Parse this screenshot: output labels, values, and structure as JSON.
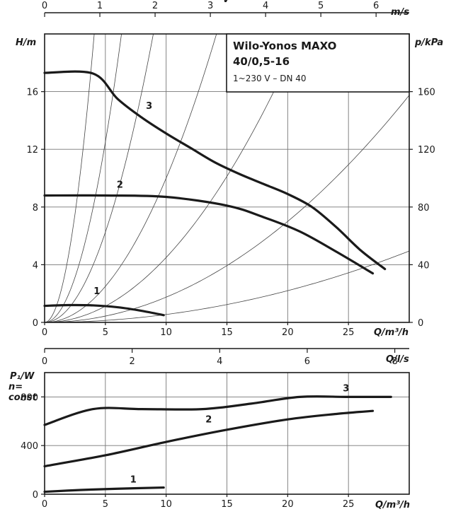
{
  "chart_data": [
    {
      "type": "line",
      "title": "Wilo-Yonos MAXO",
      "title_line2": "40/0,5-16",
      "subtitle": "1~230 V – DN 40",
      "xlabel": "Q/m³/h",
      "ylabel": "H/m",
      "y2label": "p/kPa",
      "top_axis_label": "v",
      "top_axis_unit": "m/s",
      "xlim": [
        0,
        30
      ],
      "ylim": [
        0,
        20
      ],
      "y2lim": [
        0,
        200
      ],
      "top_lim": [
        0,
        6.6
      ],
      "xticks": [
        "0",
        "5",
        "10",
        "15",
        "20",
        "25"
      ],
      "yticks": [
        "0",
        "4",
        "8",
        "12",
        "16"
      ],
      "y2ticks": [
        "0",
        "40",
        "80",
        "120",
        "160"
      ],
      "top_ticks": [
        "0",
        "1",
        "2",
        "3",
        "4",
        "5",
        "6"
      ],
      "grid": true,
      "series": [
        {
          "name": "1",
          "points": [
            [
              0,
              1.15
            ],
            [
              2,
              1.2
            ],
            [
              4,
              1.18
            ],
            [
              6,
              1.05
            ],
            [
              8,
              0.8
            ],
            [
              9.8,
              0.5
            ]
          ]
        },
        {
          "name": "2",
          "points": [
            [
              0,
              8.8
            ],
            [
              5,
              8.8
            ],
            [
              10,
              8.7
            ],
            [
              15,
              8.1
            ],
            [
              18,
              7.3
            ],
            [
              21,
              6.3
            ],
            [
              24,
              4.9
            ],
            [
              27,
              3.4
            ]
          ]
        },
        {
          "name": "3",
          "points": [
            [
              0,
              17.3
            ],
            [
              4,
              17.25
            ],
            [
              6,
              15.5
            ],
            [
              8,
              14.2
            ],
            [
              10,
              13.1
            ],
            [
              12,
              12.1
            ],
            [
              14,
              11.1
            ],
            [
              16,
              10.3
            ],
            [
              18,
              9.6
            ],
            [
              20,
              8.9
            ],
            [
              22,
              8.0
            ],
            [
              24,
              6.6
            ],
            [
              26,
              5.0
            ],
            [
              28,
              3.7
            ]
          ]
        }
      ]
    },
    {
      "type": "line",
      "xlabel": "Q/m³/h",
      "ylabel": "P₁/W",
      "ylabel_note_1": "n=",
      "ylabel_note_2": "const",
      "top_axis_label": "Q/l/s",
      "xlim": [
        0,
        30
      ],
      "ylim": [
        0,
        1000
      ],
      "top_lim": [
        0,
        8.33
      ],
      "xticks": [
        "0",
        "5",
        "10",
        "15",
        "20",
        "25"
      ],
      "yticks": [
        "0",
        "400",
        "800"
      ],
      "top_ticks": [
        "0",
        "2",
        "4",
        "6",
        "8"
      ],
      "grid": true,
      "series": [
        {
          "name": "1",
          "points": [
            [
              0,
              20
            ],
            [
              3,
              35
            ],
            [
              6,
              45
            ],
            [
              9.8,
              55
            ]
          ]
        },
        {
          "name": "2",
          "points": [
            [
              0,
              230
            ],
            [
              5,
              320
            ],
            [
              10,
              430
            ],
            [
              15,
              530
            ],
            [
              20,
              615
            ],
            [
              24,
              660
            ],
            [
              27,
              685
            ]
          ]
        },
        {
          "name": "3",
          "points": [
            [
              0,
              570
            ],
            [
              4,
              700
            ],
            [
              8,
              700
            ],
            [
              13,
              700
            ],
            [
              17,
              745
            ],
            [
              21,
              800
            ],
            [
              25,
              800
            ],
            [
              28.5,
              800
            ]
          ]
        }
      ]
    }
  ]
}
